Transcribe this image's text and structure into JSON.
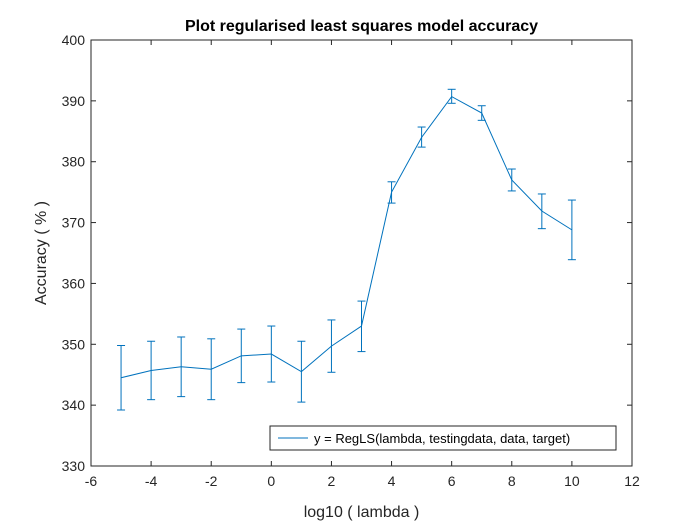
{
  "chart_data": {
    "type": "line",
    "title": "Plot regularised least squares model accuracy",
    "xlabel": "log10 ( lambda )",
    "ylabel": "Accuracy ( % )",
    "xlim": [
      -6,
      12
    ],
    "ylim": [
      330,
      400
    ],
    "xticks": [
      -6,
      -4,
      -2,
      0,
      2,
      4,
      6,
      8,
      10,
      12
    ],
    "yticks": [
      330,
      340,
      350,
      360,
      370,
      380,
      390,
      400
    ],
    "xtick_labels": [
      "-6",
      "-4",
      "-2",
      "0",
      "2",
      "4",
      "6",
      "8",
      "10",
      "12"
    ],
    "ytick_labels": [
      "330",
      "340",
      "350",
      "360",
      "370",
      "380",
      "390",
      "400"
    ],
    "grid": false,
    "legend_position": "bottom-right",
    "series": [
      {
        "name": "y = RegLS(lambda, testingdata, data, target)",
        "color": "#0072BD",
        "x": [
          -5,
          -4,
          -3,
          -2,
          -1,
          0,
          1,
          2,
          3,
          4,
          5,
          6,
          7,
          8,
          9,
          10
        ],
        "y": [
          344.5,
          345.7,
          346.3,
          345.9,
          348.1,
          348.4,
          345.5,
          349.7,
          353.0,
          375.0,
          384.0,
          390.7,
          388.0,
          377.0,
          371.9,
          368.8
        ],
        "err_low": [
          339.2,
          340.9,
          341.4,
          340.9,
          343.7,
          343.8,
          340.5,
          345.4,
          348.8,
          373.2,
          382.4,
          389.6,
          386.8,
          375.2,
          369.0,
          363.9
        ],
        "err_high": [
          349.8,
          350.5,
          351.2,
          350.9,
          352.5,
          353.0,
          350.5,
          354.0,
          357.1,
          376.7,
          385.7,
          391.9,
          389.2,
          378.8,
          374.7,
          373.7
        ]
      }
    ]
  }
}
